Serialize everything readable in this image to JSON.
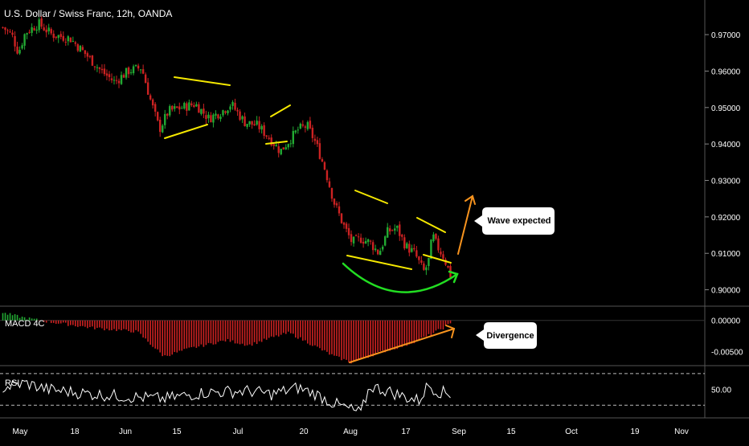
{
  "chart_data": {
    "type": "candlestick",
    "title": "U.S. Dollar / Swiss Franc, 12h, OANDA",
    "x_tick_labels": [
      "May",
      "18",
      "Jun",
      "15",
      "Jul",
      "20",
      "Aug",
      "17",
      "Sep",
      "15",
      "Oct",
      "19",
      "Nov"
    ],
    "price_axis": {
      "ticks": [
        "0.97000",
        "0.96000",
        "0.95000",
        "0.94000",
        "0.93000",
        "0.92000",
        "0.91000",
        "0.90000"
      ],
      "ylim": [
        0.8955,
        0.9795
      ]
    },
    "price_series": {
      "name": "USD/CHF",
      "trend_close": [
        [
          0,
          0.972
        ],
        [
          0.02,
          0.97
        ],
        [
          0.035,
          0.965
        ],
        [
          0.05,
          0.9705
        ],
        [
          0.08,
          0.973
        ],
        [
          0.11,
          0.97
        ],
        [
          0.15,
          0.969
        ],
        [
          0.19,
          0.964
        ],
        [
          0.22,
          0.96
        ],
        [
          0.25,
          0.957
        ],
        [
          0.28,
          0.96
        ],
        [
          0.31,
          0.961
        ],
        [
          0.33,
          0.952
        ],
        [
          0.35,
          0.944
        ],
        [
          0.37,
          0.949
        ],
        [
          0.4,
          0.95
        ],
        [
          0.43,
          0.951
        ],
        [
          0.46,
          0.947
        ],
        [
          0.49,
          0.949
        ],
        [
          0.51,
          0.951
        ],
        [
          0.54,
          0.946
        ],
        [
          0.57,
          0.945
        ],
        [
          0.6,
          0.941
        ],
        [
          0.62,
          0.938
        ],
        [
          0.64,
          0.941
        ],
        [
          0.66,
          0.944
        ],
        [
          0.68,
          0.945
        ],
        [
          0.7,
          0.94
        ],
        [
          0.72,
          0.933
        ],
        [
          0.74,
          0.924
        ],
        [
          0.76,
          0.918
        ],
        [
          0.78,
          0.913
        ],
        [
          0.8,
          0.914
        ],
        [
          0.82,
          0.913
        ],
        [
          0.84,
          0.91
        ],
        [
          0.86,
          0.916
        ],
        [
          0.88,
          0.917
        ],
        [
          0.9,
          0.912
        ],
        [
          0.92,
          0.91
        ],
        [
          0.94,
          0.905
        ],
        [
          0.95,
          0.907
        ],
        [
          0.96,
          0.915
        ],
        [
          0.97,
          0.912
        ],
        [
          0.985,
          0.909
        ],
        [
          1,
          0.904
        ]
      ]
    },
    "macd": {
      "name": "MACD 4C",
      "ticks": [
        "0.00000",
        "-0.00500"
      ],
      "ylim": [
        -0.0073,
        0.0023
      ],
      "histogram_trend": [
        [
          0,
          0.0012
        ],
        [
          0.05,
          0.0004
        ],
        [
          0.1,
          -0.0002
        ],
        [
          0.2,
          -0.0012
        ],
        [
          0.3,
          -0.0018
        ],
        [
          0.36,
          -0.0058
        ],
        [
          0.42,
          -0.0045
        ],
        [
          0.5,
          -0.0032
        ],
        [
          0.55,
          -0.004
        ],
        [
          0.6,
          -0.0028
        ],
        [
          0.64,
          -0.002
        ],
        [
          0.68,
          -0.0035
        ],
        [
          0.74,
          -0.0058
        ],
        [
          0.78,
          -0.0068
        ],
        [
          0.84,
          -0.0052
        ],
        [
          0.9,
          -0.004
        ],
        [
          0.95,
          -0.0025
        ],
        [
          1,
          -0.0006
        ]
      ]
    },
    "rsi": {
      "name": "RSI",
      "ticks": [
        "50.00"
      ],
      "ylim": [
        14,
        80
      ],
      "guide_levels": [
        70,
        30
      ],
      "trend": [
        [
          0,
          52
        ],
        [
          0.05,
          58
        ],
        [
          0.1,
          50
        ],
        [
          0.2,
          44
        ],
        [
          0.3,
          40
        ],
        [
          0.36,
          38
        ],
        [
          0.45,
          46
        ],
        [
          0.55,
          48
        ],
        [
          0.6,
          44
        ],
        [
          0.66,
          52
        ],
        [
          0.7,
          44
        ],
        [
          0.74,
          32
        ],
        [
          0.78,
          24
        ],
        [
          0.8,
          20
        ],
        [
          0.82,
          54
        ],
        [
          0.86,
          48
        ],
        [
          0.9,
          40
        ],
        [
          0.93,
          36
        ],
        [
          0.95,
          56
        ],
        [
          0.97,
          48
        ],
        [
          1,
          44
        ]
      ]
    },
    "annotations": [
      {
        "label": "Wave expected",
        "kind": "callout"
      },
      {
        "label": "Divergence",
        "kind": "callout"
      }
    ],
    "colors": {
      "up": "#22aa33",
      "down": "#cc2222",
      "pattern": "#f5e800",
      "arc": "#22dd22",
      "projection": "#f7931e",
      "line": "#ffffff"
    }
  }
}
